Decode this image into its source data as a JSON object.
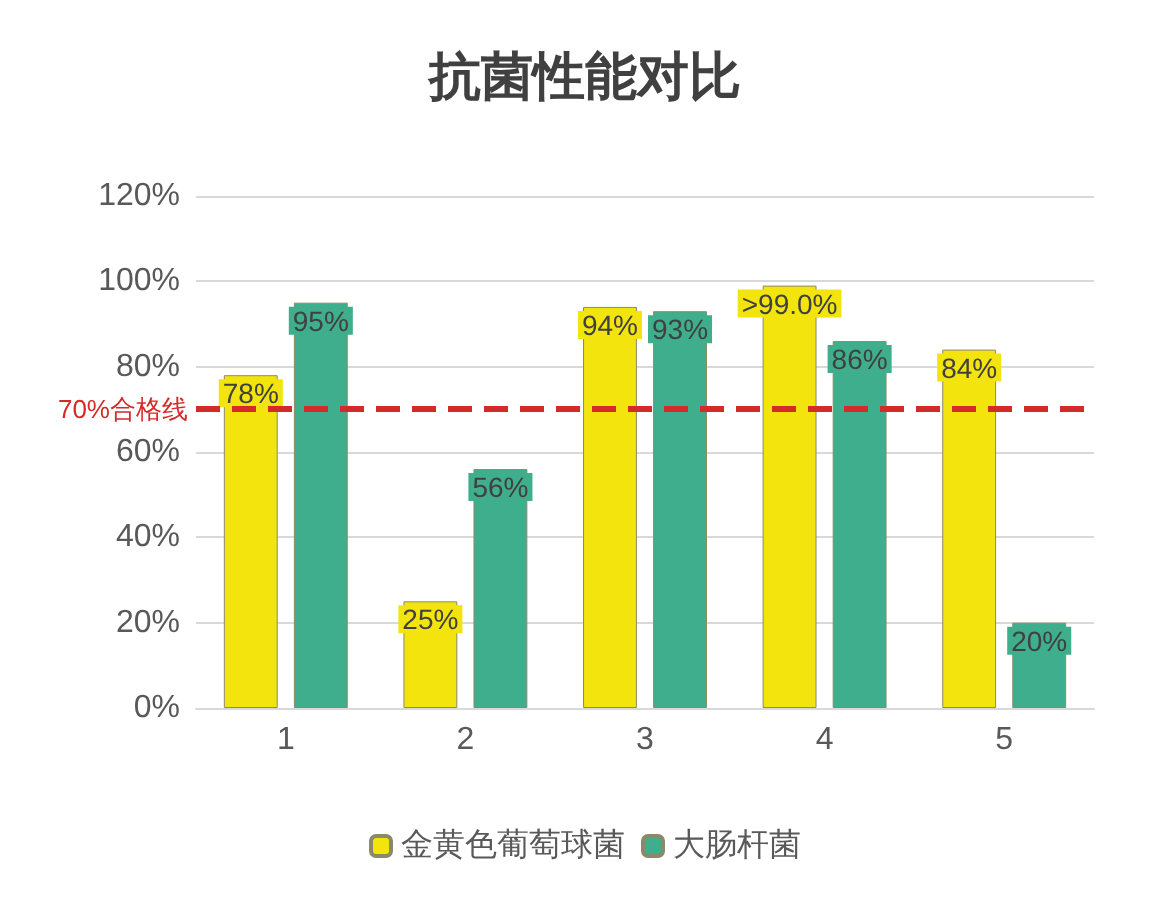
{
  "chart_data": {
    "type": "bar",
    "title": "抗菌性能对比",
    "categories": [
      "1",
      "2",
      "3",
      "4",
      "5"
    ],
    "series": [
      {
        "name": "金黄色葡萄球菌",
        "color": "#f2e40c",
        "values": [
          78,
          25,
          94,
          99,
          84
        ],
        "value_labels": [
          "78%",
          "25%",
          "94%",
          ">99.0%",
          "84%"
        ]
      },
      {
        "name": "大肠杆菌",
        "color": "#3fae8c",
        "values": [
          95,
          56,
          93,
          86,
          20
        ],
        "value_labels": [
          "95%",
          "56%",
          "93%",
          "86%",
          "20%"
        ]
      }
    ],
    "ylim": [
      0,
      120
    ],
    "yticks": [
      {
        "value": 0,
        "label": "0%"
      },
      {
        "value": 20,
        "label": "20%"
      },
      {
        "value": 40,
        "label": "40%"
      },
      {
        "value": 60,
        "label": "60%"
      },
      {
        "value": 80,
        "label": "80%"
      },
      {
        "value": 100,
        "label": "100%"
      },
      {
        "value": 120,
        "label": "120%"
      }
    ],
    "ref_lines": [
      {
        "axis": "y",
        "value": 70,
        "label": "70%合格线",
        "color": "#d42a2a",
        "line_style": "dashed"
      }
    ],
    "grid": "y",
    "legend": "bottom"
  }
}
